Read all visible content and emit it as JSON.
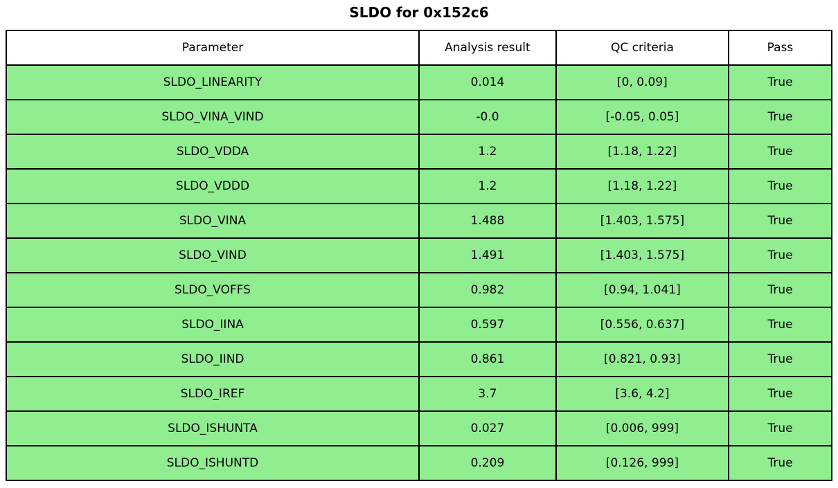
{
  "title": "SLDO for 0x152c6",
  "colors": {
    "pass_row_bg": "#90ee90",
    "header_bg": "#ffffff",
    "border": "#000000",
    "text": "#000000"
  },
  "chart_data": {
    "type": "table",
    "title": "SLDO for 0x152c6",
    "columns": [
      "Parameter",
      "Analysis result",
      "QC criteria",
      "Pass"
    ],
    "column_width_pct": [
      50.0,
      16.6,
      20.9,
      12.5
    ],
    "rows": [
      [
        "SLDO_LINEARITY",
        "0.014",
        "[0, 0.09]",
        "True"
      ],
      [
        "SLDO_VINA_VIND",
        "-0.0",
        "[-0.05, 0.05]",
        "True"
      ],
      [
        "SLDO_VDDA",
        "1.2",
        "[1.18, 1.22]",
        "True"
      ],
      [
        "SLDO_VDDD",
        "1.2",
        "[1.18, 1.22]",
        "True"
      ],
      [
        "SLDO_VINA",
        "1.488",
        "[1.403, 1.575]",
        "True"
      ],
      [
        "SLDO_VIND",
        "1.491",
        "[1.403, 1.575]",
        "True"
      ],
      [
        "SLDO_VOFFS",
        "0.982",
        "[0.94, 1.041]",
        "True"
      ],
      [
        "SLDO_IINA",
        "0.597",
        "[0.556, 0.637]",
        "True"
      ],
      [
        "SLDO_IIND",
        "0.861",
        "[0.821, 0.93]",
        "True"
      ],
      [
        "SLDO_IREF",
        "3.7",
        "[3.6, 4.2]",
        "True"
      ],
      [
        "SLDO_ISHUNTA",
        "0.027",
        "[0.006, 999]",
        "True"
      ],
      [
        "SLDO_ISHUNTD",
        "0.209",
        "[0.126, 999]",
        "True"
      ]
    ]
  }
}
